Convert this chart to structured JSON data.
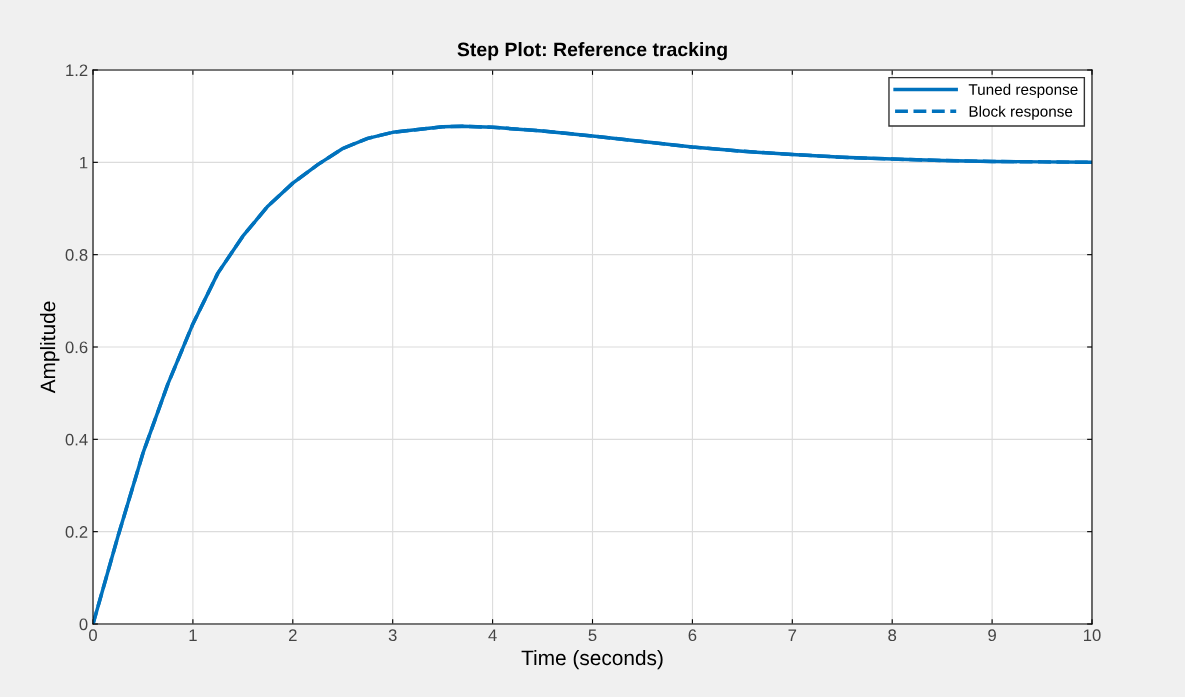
{
  "chart_data": {
    "type": "line",
    "title": "Step Plot: Reference tracking",
    "xlabel": "Time (seconds)",
    "ylabel": "Amplitude",
    "x": [
      0,
      0.25,
      0.5,
      0.75,
      1,
      1.25,
      1.5,
      1.75,
      2,
      2.25,
      2.5,
      2.75,
      3,
      3.5,
      3.7,
      4,
      4.5,
      5,
      5.5,
      6,
      6.5,
      7,
      7.5,
      8,
      8.5,
      9,
      9.5,
      10
    ],
    "series": [
      {
        "name": "Tuned response",
        "color": "#0072bd",
        "line_style": "solid",
        "values": [
          0,
          0.19,
          0.37,
          0.52,
          0.65,
          0.76,
          0.84,
          0.905,
          0.955,
          0.995,
          1.03,
          1.052,
          1.065,
          1.077,
          1.078,
          1.076,
          1.068,
          1.057,
          1.045,
          1.033,
          1.024,
          1.017,
          1.011,
          1.007,
          1.004,
          1.002,
          1.001,
          1.0
        ]
      },
      {
        "name": "Block response",
        "color": "#0072bd",
        "line_style": "dashed",
        "values": [
          0,
          0.19,
          0.37,
          0.52,
          0.65,
          0.76,
          0.84,
          0.905,
          0.955,
          0.995,
          1.03,
          1.052,
          1.065,
          1.077,
          1.078,
          1.076,
          1.068,
          1.057,
          1.045,
          1.033,
          1.024,
          1.017,
          1.011,
          1.007,
          1.004,
          1.002,
          1.001,
          1.0
        ]
      }
    ],
    "xlim": [
      0,
      10
    ],
    "xticks": [
      0,
      1,
      2,
      3,
      4,
      5,
      6,
      7,
      8,
      9,
      10
    ],
    "ylim": [
      0,
      1.2
    ],
    "yticks": [
      0,
      0.2,
      0.4,
      0.6,
      0.8,
      1,
      1.2
    ],
    "grid": true,
    "legend": "top right"
  }
}
